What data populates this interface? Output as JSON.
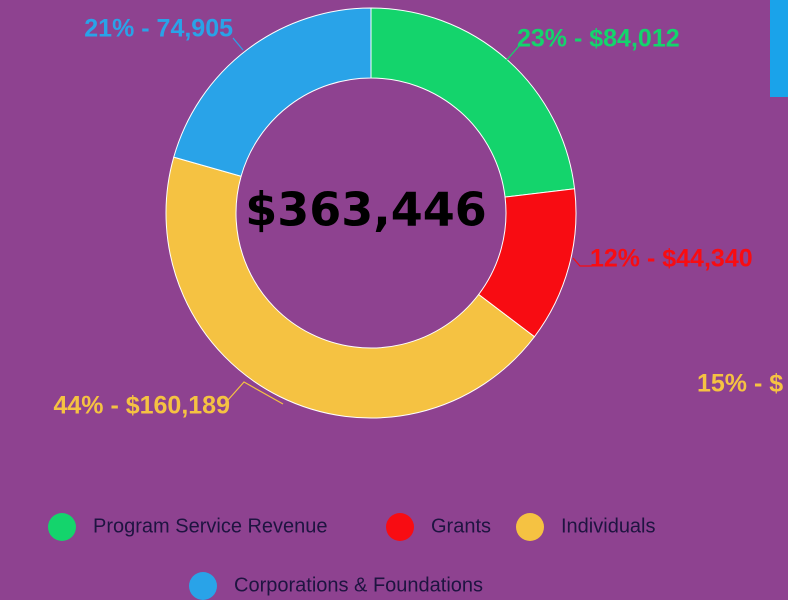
{
  "chart_data": {
    "type": "donut",
    "center_label": "$363,446",
    "categories": [
      "Program Service Revenue",
      "Grants",
      "Individuals",
      "Corporations & Foundations"
    ],
    "values": [
      84012,
      44340,
      160189,
      74905
    ],
    "value_labels": [
      "23% - $84,012",
      "12% - $44,340",
      "44% - $160,189",
      "21% - 74,905"
    ],
    "colors": [
      "#14d46c",
      "#f80c12",
      "#f5c242",
      "#29a3e8"
    ],
    "annotations": [
      {
        "text": "15% - $",
        "color": "#f5c242"
      }
    ],
    "legend": "bottom"
  }
}
